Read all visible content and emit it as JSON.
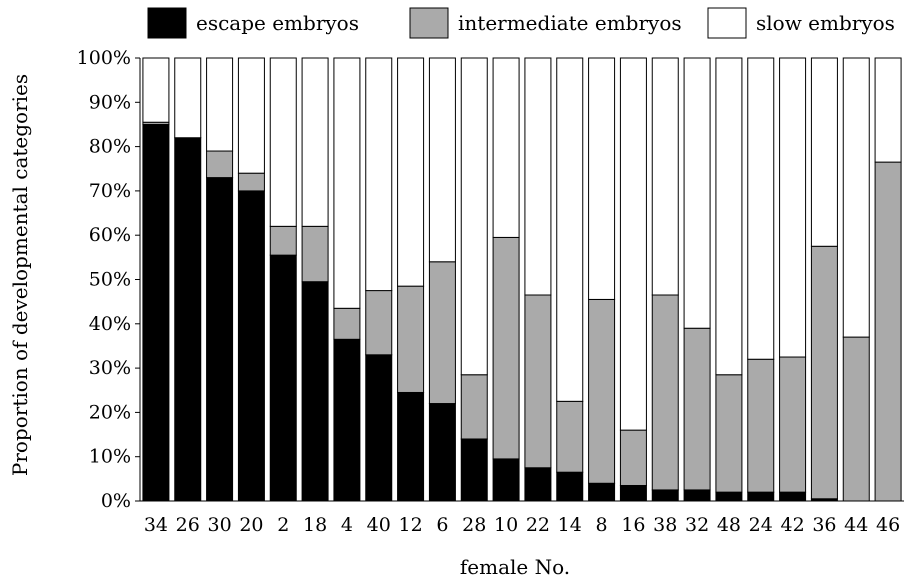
{
  "chart_data": {
    "type": "bar",
    "stacked": true,
    "normalized": true,
    "xlabel": "female No.",
    "ylabel": "Proportion of developmental categories",
    "ylim": [
      0,
      100
    ],
    "y_ticks": [
      "0%",
      "10%",
      "20%",
      "30%",
      "40%",
      "50%",
      "60%",
      "70%",
      "80%",
      "90%",
      "100%"
    ],
    "legend_position": "top",
    "grid": false,
    "categories": [
      "34",
      "26",
      "30",
      "20",
      "2",
      "18",
      "4",
      "40",
      "12",
      "6",
      "28",
      "10",
      "22",
      "14",
      "8",
      "16",
      "38",
      "32",
      "48",
      "24",
      "42",
      "36",
      "44",
      "46"
    ],
    "series": [
      {
        "name": "escape embryos",
        "color": "#000000",
        "values": [
          85,
          82,
          73,
          70,
          55.5,
          49.5,
          36.5,
          33,
          24.5,
          22,
          14,
          9.5,
          7.5,
          6.5,
          4,
          3.5,
          2.5,
          2.5,
          2,
          2,
          2,
          0.5,
          0,
          0
        ]
      },
      {
        "name": "intermediate embryos",
        "color": "#aaaaaa",
        "values": [
          0.5,
          0,
          6,
          4,
          6.5,
          12.5,
          7,
          14.5,
          24,
          32,
          14.5,
          50,
          39,
          16,
          41.5,
          12.5,
          44,
          36.5,
          26.5,
          30,
          30.5,
          57,
          37,
          76.5
        ]
      },
      {
        "name": "slow embryos",
        "color": "#ffffff",
        "values": [
          14.5,
          18,
          21,
          26,
          38,
          38,
          56.5,
          52.5,
          51.5,
          46,
          71.5,
          40.5,
          53.5,
          77.5,
          54.5,
          84,
          53.5,
          61,
          71.5,
          68,
          67.5,
          42.5,
          63,
          23.5
        ]
      }
    ]
  }
}
